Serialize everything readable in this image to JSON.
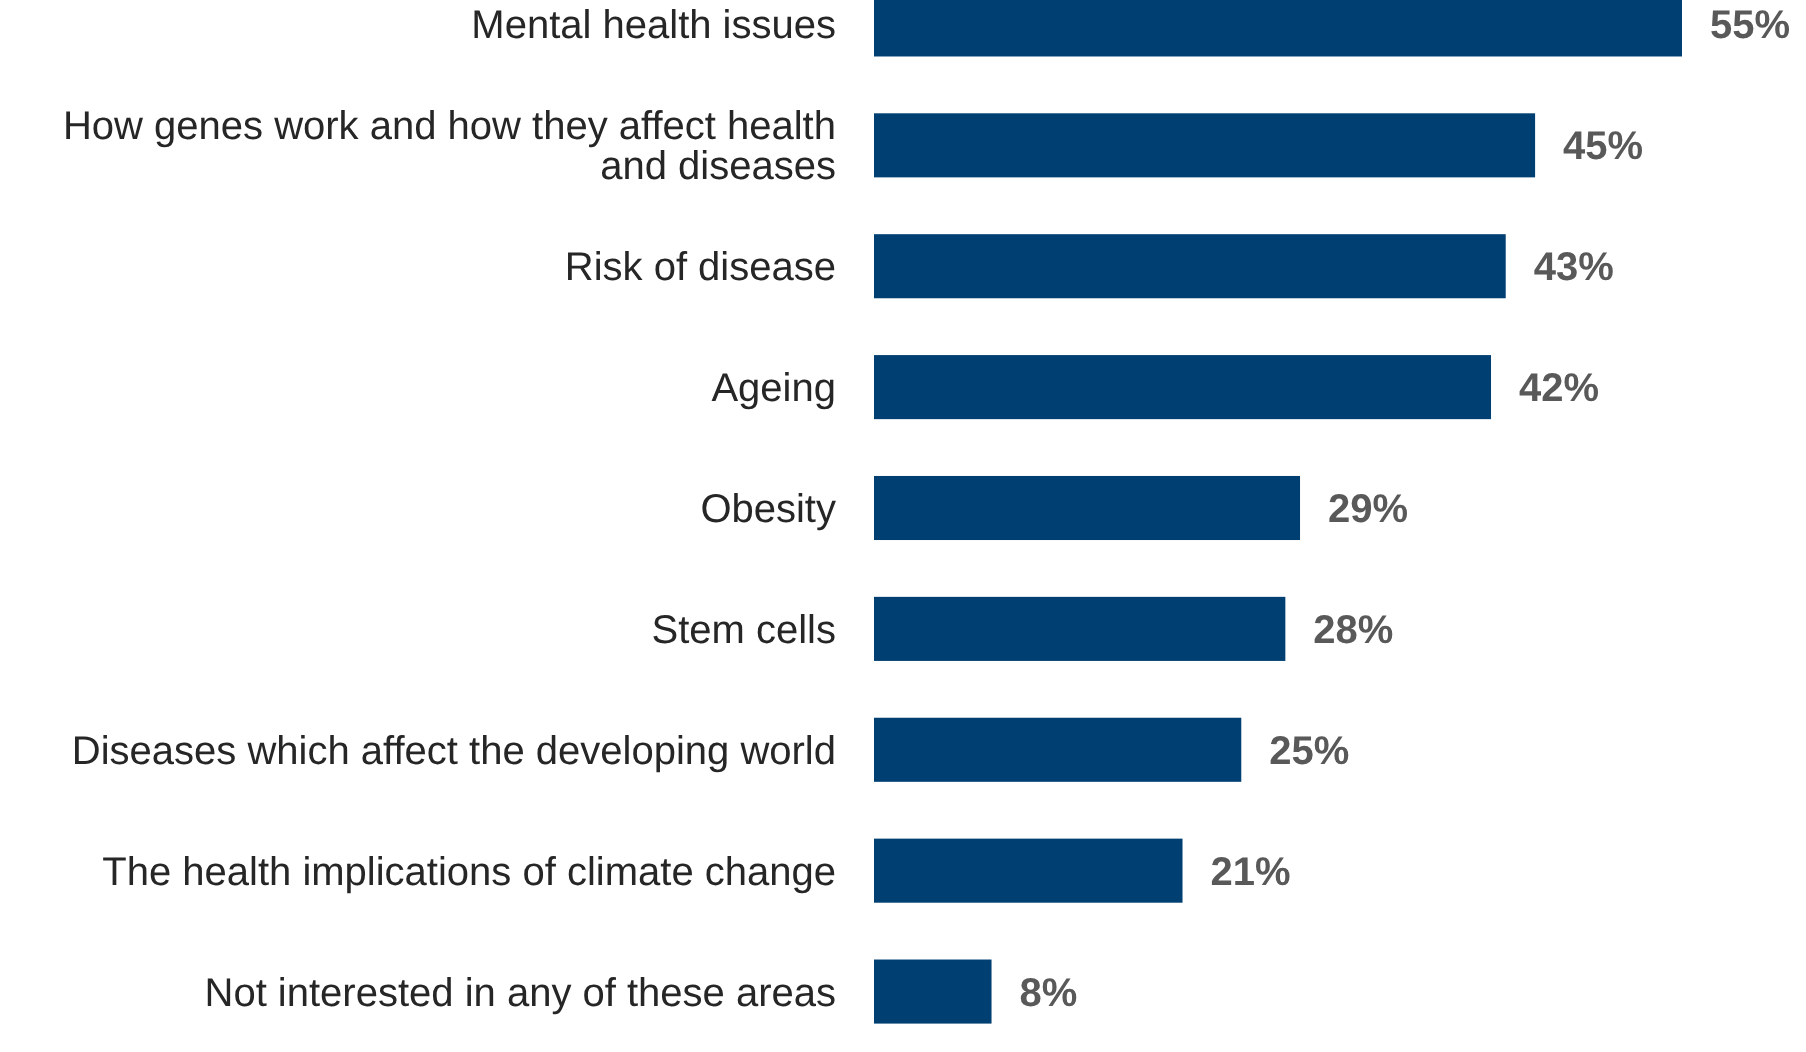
{
  "chart_data": {
    "type": "bar",
    "orientation": "horizontal",
    "categories": [
      "Mental health issues",
      "How genes work and how they affect health and diseases",
      "Risk of disease",
      "Ageing",
      "Obesity",
      "Stem cells",
      "Diseases which affect the developing world",
      "The health implications of climate change",
      "Not interested in any of these areas"
    ],
    "values": [
      55,
      45,
      43,
      42,
      29,
      28,
      25,
      21,
      8
    ],
    "value_labels": [
      "55%",
      "45%",
      "43%",
      "42%",
      "29%",
      "28%",
      "25%",
      "21%",
      "8%"
    ],
    "color": "#003f72"
  }
}
